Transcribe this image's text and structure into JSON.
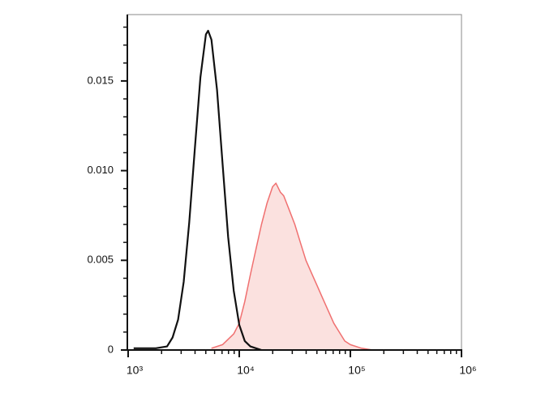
{
  "chart_data": {
    "type": "line",
    "xscale": "log",
    "xlim": [
      1000,
      1000000
    ],
    "xticks": [
      {
        "value": 1000,
        "label": "10³"
      },
      {
        "value": 10000,
        "label": "10⁴"
      },
      {
        "value": 100000,
        "label": "10⁵"
      },
      {
        "value": 1000000,
        "label": "10⁶"
      }
    ],
    "xminorticks": [
      2000,
      3000,
      4000,
      5000,
      6000,
      7000,
      8000,
      9000,
      20000,
      30000,
      40000,
      50000,
      60000,
      70000,
      80000,
      90000,
      200000,
      300000,
      400000,
      500000,
      600000,
      700000,
      800000,
      900000
    ],
    "ylim": [
      0,
      0.0187
    ],
    "yticks": [
      0,
      0.005,
      {
        "value": 0.01,
        "label": "0.010"
      },
      {
        "value": 0.015,
        "label": "0.015"
      }
    ],
    "yminorticks": [
      0.001,
      0.002,
      0.003,
      0.004,
      0.006,
      0.007,
      0.008,
      0.009,
      0.011,
      0.012,
      0.013,
      0.014,
      0.016,
      0.017,
      0.018
    ],
    "series": [
      {
        "color": "#f07070",
        "fill_color": "#fbe1df",
        "x": [
          5623,
          7079,
          8913,
          10000,
          11220,
          12589,
          14125,
          15849,
          17783,
          19953,
          21380,
          23442,
          25119,
          28184,
          31623,
          35481,
          39811,
          44668,
          50119,
          56234,
          63096,
          70795,
          79433,
          89125,
          100000,
          125893,
          158489
        ],
        "values": [
          0.0001,
          0.0003,
          0.0009,
          0.0015,
          0.0027,
          0.0042,
          0.0056,
          0.007,
          0.0082,
          0.0091,
          0.0093,
          0.0088,
          0.0086,
          0.0078,
          0.007,
          0.006,
          0.005,
          0.0043,
          0.0036,
          0.0029,
          0.0022,
          0.0015,
          0.001,
          0.0005,
          0.0003,
          0.0001,
          0
        ]
      },
      {
        "color": "#111111",
        "x": [
          1122,
          1413,
          1778,
          2239,
          2512,
          2818,
          3162,
          3548,
          3981,
          4467,
          5012,
          5248,
          5623,
          6310,
          7079,
          7943,
          8913,
          10000,
          11220,
          12589,
          14125,
          15849
        ],
        "values": [
          0.0001,
          0.0001,
          0.0001,
          0.0002,
          0.0007,
          0.0017,
          0.0038,
          0.0071,
          0.0112,
          0.0152,
          0.0176,
          0.0178,
          0.0173,
          0.0145,
          0.0104,
          0.0063,
          0.0033,
          0.0014,
          0.0005,
          0.0002,
          0.0001,
          0
        ]
      }
    ]
  }
}
